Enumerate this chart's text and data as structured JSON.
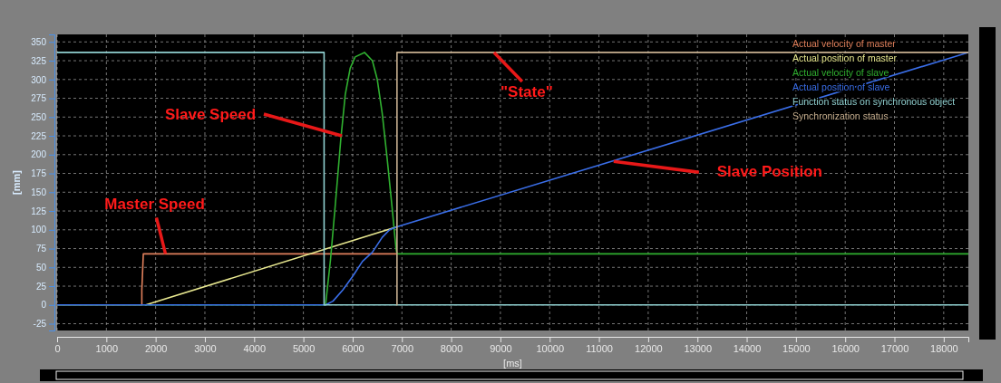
{
  "chart_data": {
    "type": "line",
    "xlabel": "[ms]",
    "ylabel": "[mm]",
    "xlim": [
      0,
      18500
    ],
    "ylim": [
      -34,
      360
    ],
    "xticks": [
      0,
      1000,
      2000,
      3000,
      4000,
      5000,
      6000,
      7000,
      8000,
      9000,
      10000,
      11000,
      12000,
      13000,
      14000,
      15000,
      16000,
      17000,
      18000
    ],
    "yticks": [
      -25,
      0,
      25,
      50,
      75,
      100,
      125,
      150,
      175,
      200,
      225,
      250,
      275,
      300,
      325,
      350
    ],
    "grid": true,
    "legend": "top right",
    "line_style": "solid",
    "marker": "none",
    "series": [
      {
        "name": "Actual velocity of master",
        "color": "#e0805c",
        "x": [
          0,
          1720,
          1720,
          1750,
          6900
        ],
        "values": [
          0,
          0,
          20,
          68,
          68
        ]
      },
      {
        "name": "Actual position of master",
        "color": "#e8e890",
        "x": [
          1800,
          6900
        ],
        "values": [
          0,
          104
        ]
      },
      {
        "name": "Actual velocity of slave",
        "color": "#30b030",
        "x": [
          0,
          5450,
          5550,
          5650,
          5760,
          5850,
          5950,
          6050,
          6240,
          6400,
          6500,
          6600,
          6700,
          6800,
          6880,
          6900,
          18500
        ],
        "values": [
          0,
          0,
          60,
          135,
          221,
          280,
          315,
          330,
          336,
          325,
          300,
          255,
          195,
          130,
          75,
          68,
          68
        ]
      },
      {
        "name": "Actual position of slave",
        "color": "#3a6ee8",
        "x": [
          0,
          5450,
          5600,
          5800,
          6000,
          6200,
          6400,
          6600,
          6750,
          6900,
          18500
        ],
        "values": [
          0,
          0,
          5,
          20,
          38,
          58,
          70,
          90,
          100,
          104,
          336
        ]
      },
      {
        "name": "Function status on synchronous object",
        "color": "#90d0d0",
        "x": [
          0,
          5420,
          5420,
          18500
        ],
        "values": [
          336,
          336,
          0,
          0
        ]
      },
      {
        "name": "Synchronization status",
        "color": "#c8b090",
        "x": [
          6900,
          6900,
          18500
        ],
        "values": [
          0,
          336,
          336
        ]
      }
    ],
    "annotations": [
      {
        "text": "Slave Speed",
        "x": 5780,
        "y": 225
      },
      {
        "text": "Master Speed",
        "x": 2200,
        "y": 68
      },
      {
        "text": "\"State\"",
        "x": 8870,
        "y": 336
      },
      {
        "text": "Slave Position",
        "x": 11300,
        "y": 191
      }
    ]
  }
}
